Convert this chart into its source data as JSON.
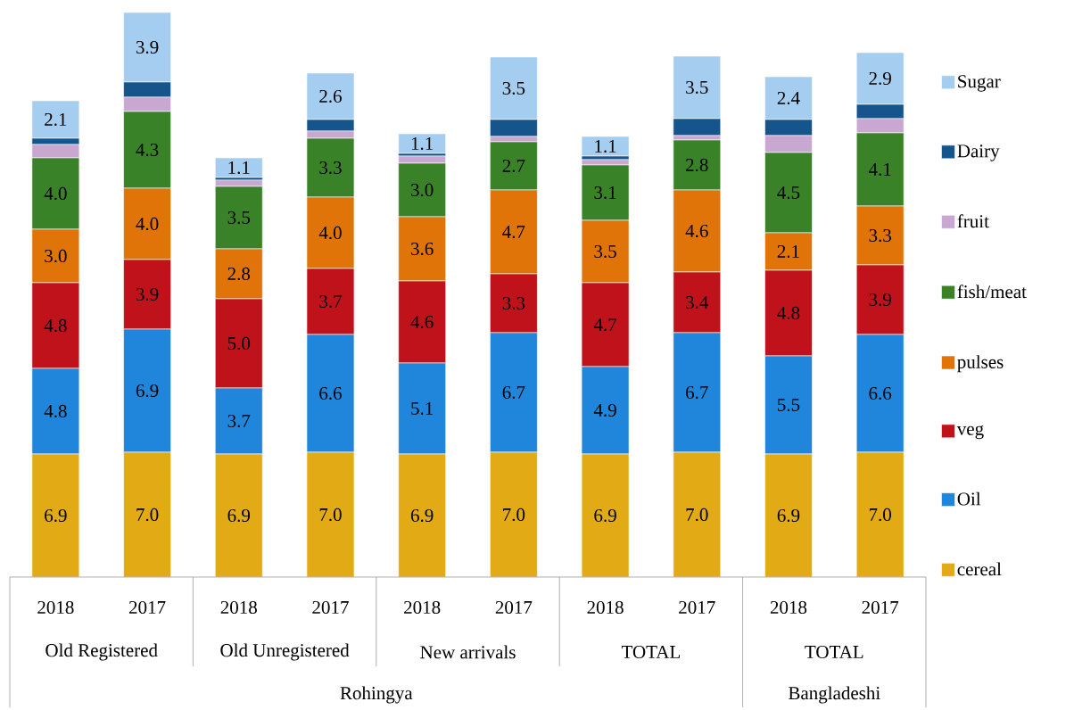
{
  "chart_data": {
    "type": "bar",
    "stacked": true,
    "legend": "right",
    "categories": [
      "2018",
      "2017",
      "2018",
      "2017",
      "2018",
      "2017",
      "2018",
      "2017",
      "2018",
      "2017"
    ],
    "annotations": [
      "Old Registered",
      "Old Unregistered",
      "New arrivals",
      "TOTAL",
      "TOTAL",
      "Rohingya",
      "Bangladeshi"
    ],
    "series": [
      {
        "name": "cereal",
        "color": "#e2ab16",
        "values": [
          6.9,
          7.0,
          6.9,
          7.0,
          6.9,
          7.0,
          6.9,
          7.0,
          6.9,
          7.0
        ],
        "value_labels": [
          "6.9",
          "7.0",
          "6.9",
          "7.0",
          "6.9",
          "7.0",
          "6.9",
          "7.0",
          "6.9",
          "7.0"
        ]
      },
      {
        "name": "Oil",
        "color": "#1f86dc",
        "values": [
          4.8,
          6.9,
          3.7,
          6.6,
          5.1,
          6.7,
          4.9,
          6.7,
          5.5,
          6.6
        ],
        "value_labels": [
          "4.8",
          "6.9",
          "3.7",
          "6.6",
          "5.1",
          "6.7",
          "4.9",
          "6.7",
          "5.5",
          "6.6"
        ]
      },
      {
        "name": "veg",
        "color": "#c0121a",
        "values": [
          4.8,
          3.9,
          5.0,
          3.7,
          4.6,
          3.3,
          4.7,
          3.4,
          4.8,
          3.9
        ],
        "value_labels": [
          "4.8",
          "3.9",
          "5.0",
          "3.7",
          "4.6",
          "3.3",
          "4.7",
          "3.4",
          "4.8",
          "3.9"
        ]
      },
      {
        "name": "pulses",
        "color": "#e07408",
        "values": [
          3.0,
          4.0,
          2.8,
          4.0,
          3.6,
          4.7,
          3.5,
          4.6,
          2.1,
          3.3
        ],
        "value_labels": [
          "3.0",
          "4.0",
          "2.8",
          "4.0",
          "3.6",
          "4.7",
          "3.5",
          "4.6",
          "2.1",
          "3.3"
        ]
      },
      {
        "name": "fish/meat",
        "color": "#3a8228",
        "values": [
          4.0,
          4.3,
          3.5,
          3.3,
          3.0,
          2.7,
          3.1,
          2.8,
          4.5,
          4.1
        ],
        "value_labels": [
          "4.0",
          "4.3",
          "3.5",
          "3.3",
          "3.0",
          "2.7",
          "3.1",
          "2.8",
          "4.5",
          "4.1"
        ]
      },
      {
        "name": "fruit",
        "color": "#c8a8d0",
        "values": [
          0.75,
          0.8,
          0.35,
          0.4,
          0.4,
          0.3,
          0.3,
          0.25,
          0.95,
          0.8
        ]
      },
      {
        "name": "Dairy",
        "color": "#16548c",
        "values": [
          0.35,
          0.85,
          0.15,
          0.65,
          0.15,
          0.95,
          0.2,
          0.95,
          0.9,
          0.8
        ]
      },
      {
        "name": "Sugar",
        "color": "#a5cdf0",
        "values": [
          2.1,
          3.9,
          1.1,
          2.6,
          1.1,
          3.5,
          1.1,
          3.5,
          2.4,
          2.9
        ],
        "value_labels": [
          "2.1",
          "3.9",
          "1.1",
          "2.6",
          "1.1",
          "3.5",
          "1.1",
          "3.5",
          "2.4",
          "2.9"
        ]
      }
    ]
  }
}
